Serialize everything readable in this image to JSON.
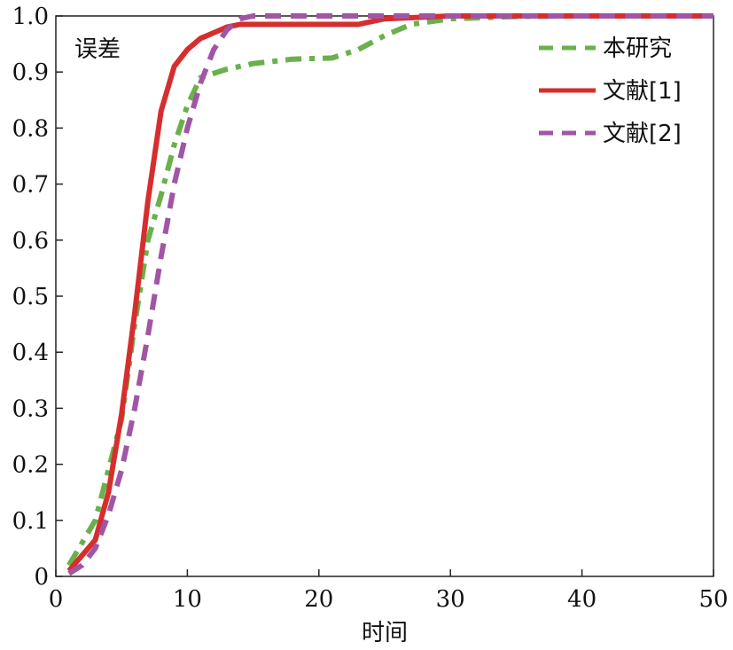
{
  "chart_data": {
    "type": "line",
    "title": "",
    "xlabel": "时间",
    "ylabel": "误差",
    "xlim": [
      0,
      50
    ],
    "ylim": [
      0,
      1.0
    ],
    "x_ticks": [
      "0",
      "10",
      "20",
      "30",
      "40",
      "50"
    ],
    "y_ticks": [
      "0",
      "0.1",
      "0.2",
      "0.3",
      "0.4",
      "0.5",
      "0.6",
      "0.7",
      "0.8",
      "0.9",
      "1.0"
    ],
    "grid": false,
    "legend_position": "top-right",
    "series": [
      {
        "name": "本研究",
        "color": "#6ab04c",
        "dash": "dash-dot",
        "points": [
          [
            1,
            0.02
          ],
          [
            3,
            0.1
          ],
          [
            5,
            0.28
          ],
          [
            6,
            0.45
          ],
          [
            7,
            0.6
          ],
          [
            8,
            0.68
          ],
          [
            9,
            0.77
          ],
          [
            10,
            0.84
          ],
          [
            11,
            0.89
          ],
          [
            13,
            0.905
          ],
          [
            15,
            0.915
          ],
          [
            18,
            0.923
          ],
          [
            21,
            0.925
          ],
          [
            23,
            0.94
          ],
          [
            25,
            0.965
          ],
          [
            27,
            0.985
          ],
          [
            30,
            0.995
          ],
          [
            35,
            0.999
          ],
          [
            40,
            1.0
          ],
          [
            50,
            1.0
          ]
        ]
      },
      {
        "name": "文献[1]",
        "color": "#d62e2e",
        "dash": "solid",
        "points": [
          [
            1,
            0.01
          ],
          [
            3,
            0.065
          ],
          [
            4,
            0.15
          ],
          [
            5,
            0.29
          ],
          [
            6,
            0.47
          ],
          [
            7,
            0.67
          ],
          [
            8,
            0.83
          ],
          [
            9,
            0.91
          ],
          [
            10,
            0.94
          ],
          [
            11,
            0.96
          ],
          [
            12,
            0.97
          ],
          [
            13,
            0.98
          ],
          [
            14,
            0.985
          ],
          [
            20,
            0.985
          ],
          [
            23,
            0.985
          ],
          [
            25,
            0.995
          ],
          [
            30,
            1.0
          ],
          [
            50,
            1.0
          ]
        ]
      },
      {
        "name": "文献[2]",
        "color": "#a155a5",
        "dash": "dash",
        "points": [
          [
            1,
            0.005
          ],
          [
            2,
            0.02
          ],
          [
            3,
            0.05
          ],
          [
            4,
            0.11
          ],
          [
            5,
            0.19
          ],
          [
            6,
            0.3
          ],
          [
            7,
            0.43
          ],
          [
            8,
            0.57
          ],
          [
            9,
            0.7
          ],
          [
            10,
            0.8
          ],
          [
            11,
            0.88
          ],
          [
            12,
            0.94
          ],
          [
            13,
            0.975
          ],
          [
            14,
            0.995
          ],
          [
            15,
            1.0
          ],
          [
            50,
            1.0
          ]
        ]
      }
    ]
  }
}
